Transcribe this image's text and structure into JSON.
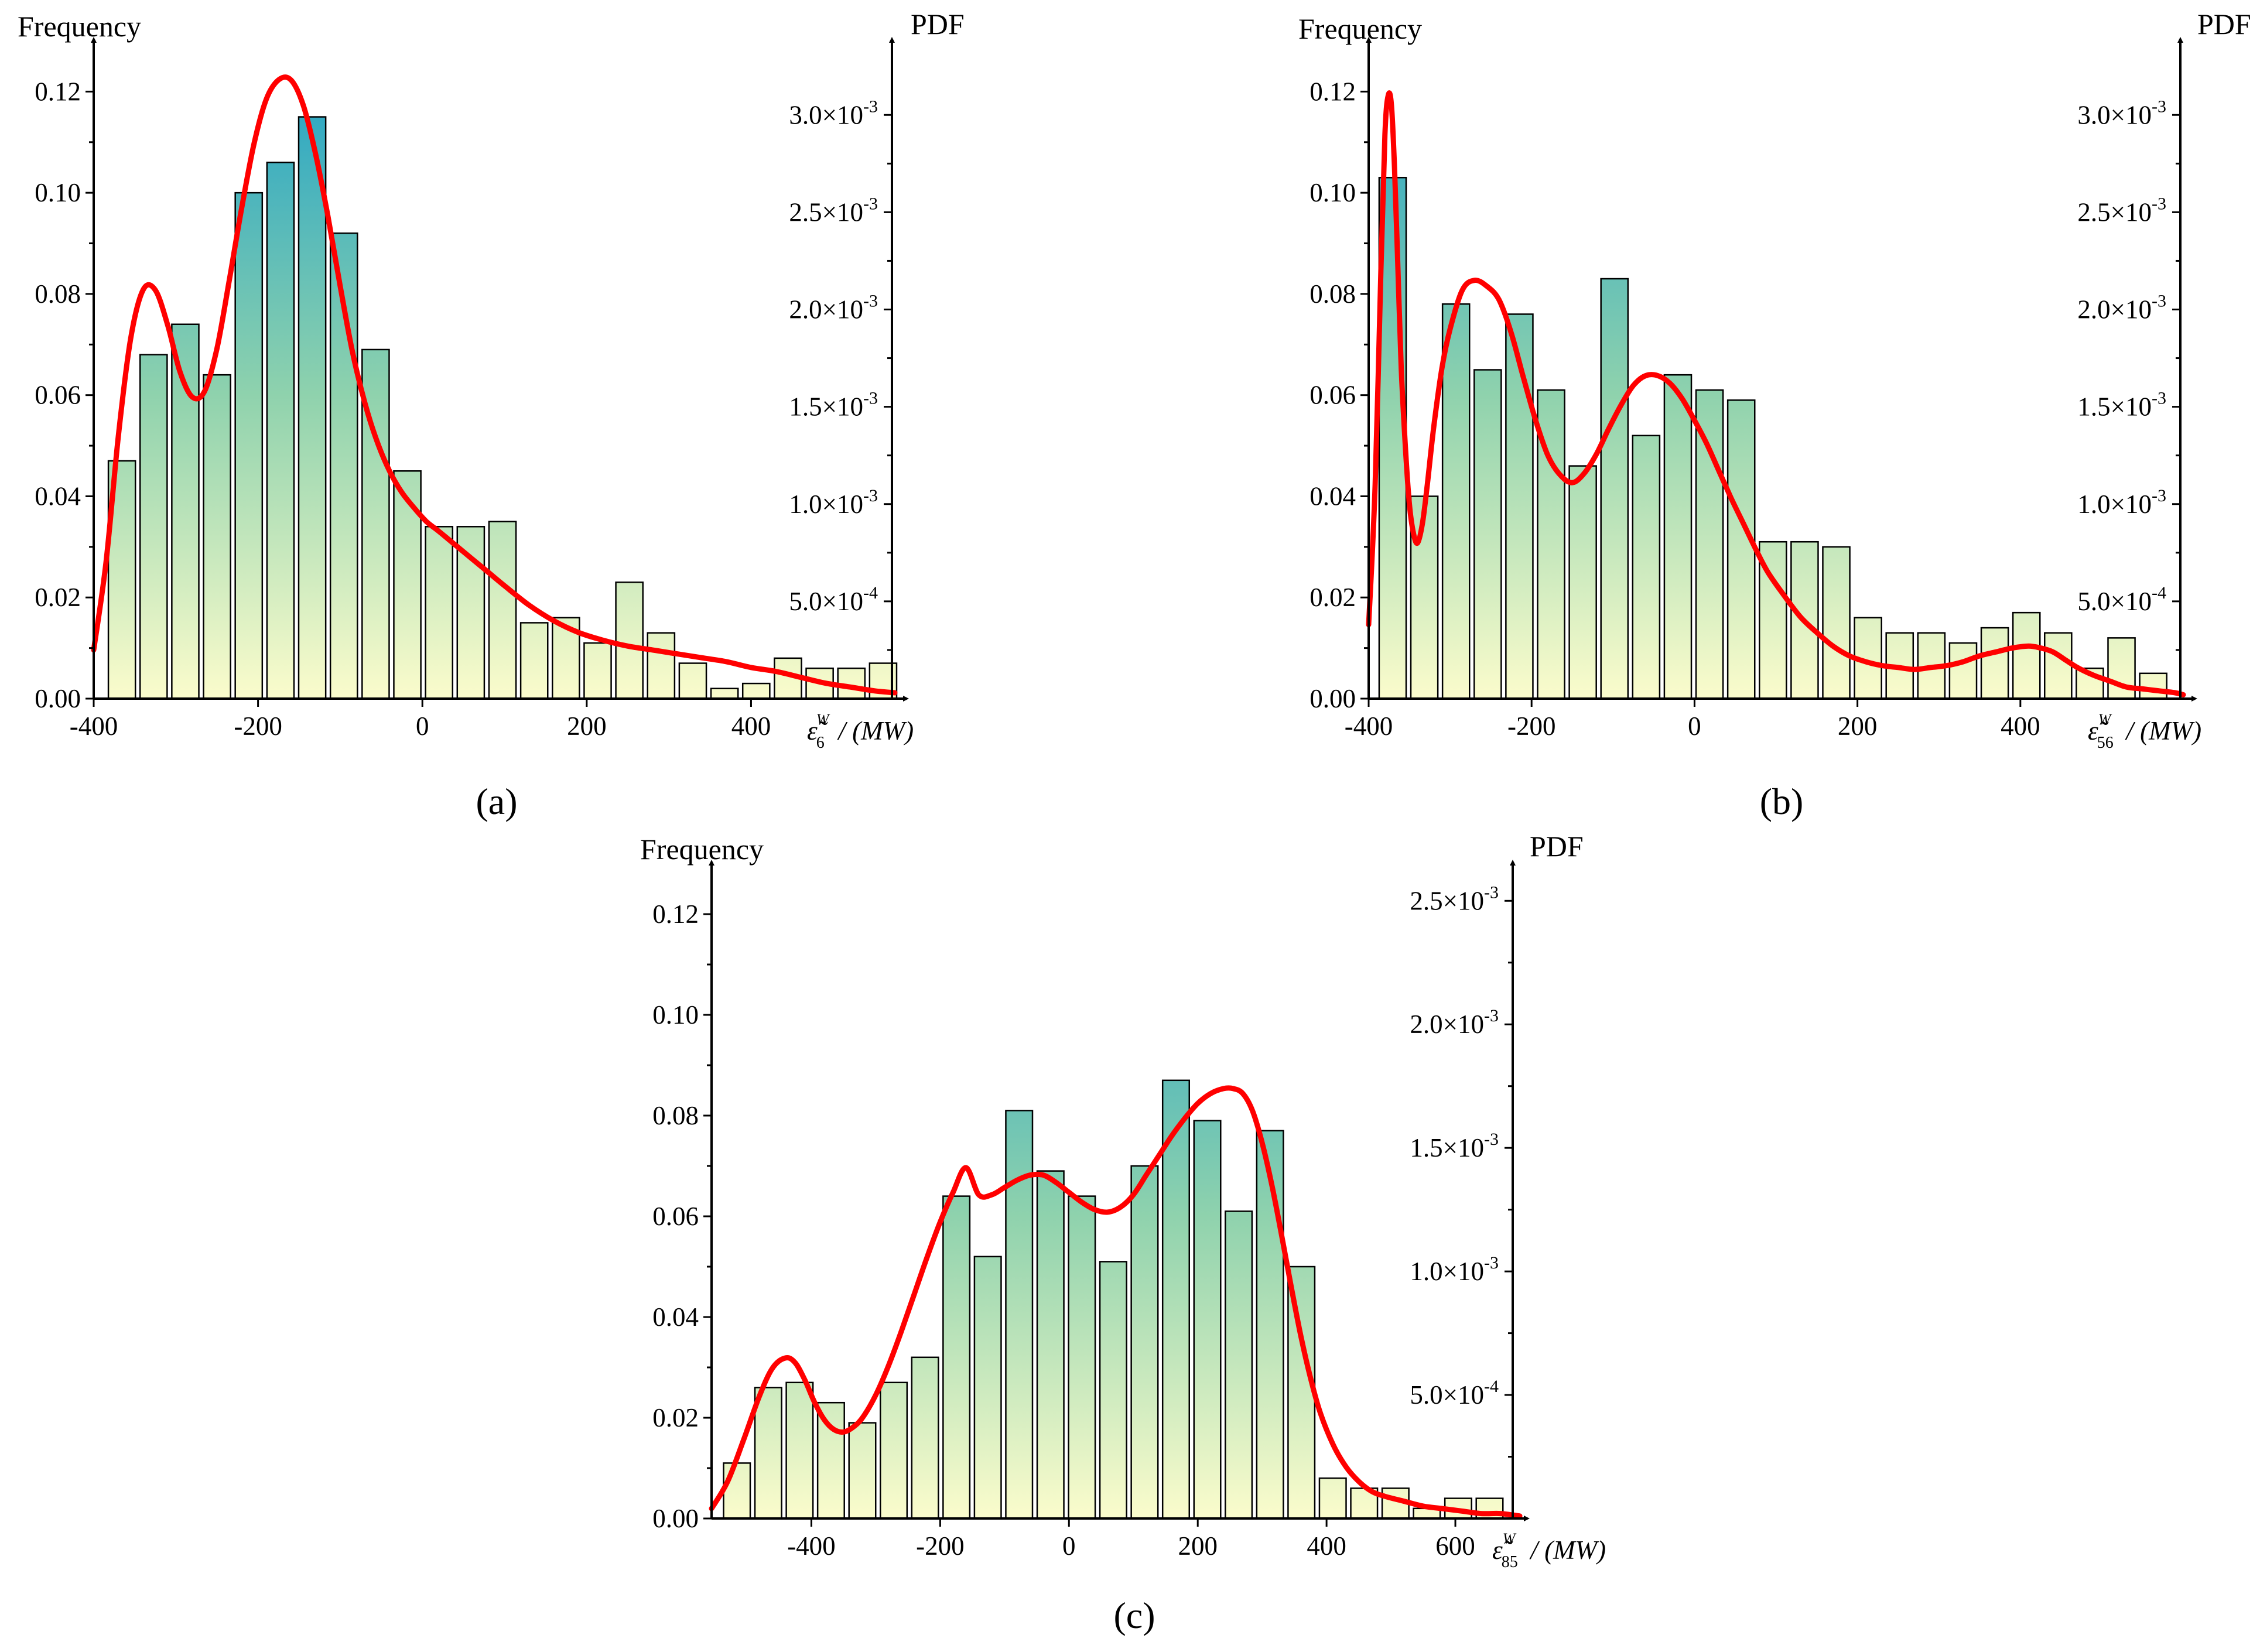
{
  "colors": {
    "bar_high": "#2ba6c4",
    "bar_mid": "#8fd2ad",
    "bar_low": "#fbfccc",
    "curve": "#ff0000",
    "axis": "#000000"
  },
  "chart_data": [
    {
      "id": "a",
      "type": "bar",
      "panel_label": "(a)",
      "ylabel": "Frequency",
      "y2label": "PDF",
      "xlabel_symbol": "ε̃",
      "xlabel_subscript": "6",
      "xlabel_superscript": "W",
      "xlabel_unit": "/ (MW)",
      "xlim": [
        -400,
        580
      ],
      "ylim": [
        0,
        0.13
      ],
      "y2lim": [
        0,
        0.00338
      ],
      "xticks": [
        -400,
        -200,
        0,
        200,
        400
      ],
      "xtick_labels": [
        "-400",
        "-200",
        "0",
        "200",
        "400"
      ],
      "yticks": [
        0,
        0.02,
        0.04,
        0.06,
        0.08,
        0.1,
        0.12
      ],
      "ytick_labels": [
        "0.00",
        "0.02",
        "0.04",
        "0.06",
        "0.08",
        "0.10",
        "0.12"
      ],
      "y2ticks": [
        0.0005,
        0.001,
        0.0015,
        0.002,
        0.0025,
        0.003
      ],
      "y2tick_labels": [
        {
          "mant": "5.0×10",
          "exp": "-4"
        },
        {
          "mant": "1.0×10",
          "exp": "-3"
        },
        {
          "mant": "1.5×10",
          "exp": "-3"
        },
        {
          "mant": "2.0×10",
          "exp": "-3"
        },
        {
          "mant": "2.5×10",
          "exp": "-3"
        },
        {
          "mant": "3.0×10",
          "exp": "-3"
        }
      ],
      "bin_start": -385,
      "bin_width": 38.6,
      "values": [
        0.047,
        0.068,
        0.074,
        0.064,
        0.1,
        0.106,
        0.115,
        0.092,
        0.069,
        0.045,
        0.034,
        0.034,
        0.035,
        0.015,
        0.016,
        0.011,
        0.023,
        0.013,
        0.007,
        0.002,
        0.003,
        0.008,
        0.006,
        0.006,
        0.007
      ],
      "pdf": {
        "x": [
          -400,
          -385,
          -370,
          -355,
          -340,
          -325,
          -310,
          -295,
          -280,
          -265,
          -250,
          -235,
          -220,
          -205,
          -190,
          -175,
          -160,
          -145,
          -130,
          -115,
          -100,
          -85,
          -70,
          -55,
          -40,
          -25,
          -10,
          5,
          20,
          40,
          60,
          80,
          100,
          130,
          160,
          190,
          220,
          250,
          280,
          310,
          340,
          370,
          400,
          430,
          460,
          490,
          520,
          550,
          575
        ],
        "y": [
          0.00025,
          0.0007,
          0.00135,
          0.00185,
          0.0021,
          0.0021,
          0.00192,
          0.00168,
          0.00155,
          0.00158,
          0.0018,
          0.00215,
          0.00252,
          0.00285,
          0.00308,
          0.00318,
          0.00318,
          0.00305,
          0.0028,
          0.00248,
          0.00212,
          0.00178,
          0.00152,
          0.00132,
          0.00117,
          0.00106,
          0.00098,
          0.00091,
          0.00086,
          0.00079,
          0.00072,
          0.00065,
          0.00058,
          0.00048,
          0.0004,
          0.00034,
          0.0003,
          0.00027,
          0.00025,
          0.00023,
          0.00021,
          0.00019,
          0.00016,
          0.00014,
          0.00011,
          8e-05,
          6e-05,
          4e-05,
          3e-05
        ]
      }
    },
    {
      "id": "b",
      "type": "bar",
      "panel_label": "(b)",
      "ylabel": "Frequency",
      "y2label": "PDF",
      "xlabel_symbol": "ε̃",
      "xlabel_subscript": "56",
      "xlabel_superscript": "W",
      "xlabel_unit": "/ (MW)",
      "xlim": [
        -400,
        605
      ],
      "ylim": [
        0,
        0.13
      ],
      "y2lim": [
        0,
        0.00338
      ],
      "xticks": [
        -400,
        -200,
        0,
        200,
        400
      ],
      "xtick_labels": [
        "-400",
        "-200",
        "0",
        "200",
        "400"
      ],
      "yticks": [
        0,
        0.02,
        0.04,
        0.06,
        0.08,
        0.1,
        0.12
      ],
      "ytick_labels": [
        "0.00",
        "0.02",
        "0.04",
        "0.06",
        "0.08",
        "0.10",
        "0.12"
      ],
      "y2ticks": [
        0.0005,
        0.001,
        0.0015,
        0.002,
        0.0025,
        0.003
      ],
      "y2tick_labels": [
        {
          "mant": "5.0×10",
          "exp": "-4"
        },
        {
          "mant": "1.0×10",
          "exp": "-3"
        },
        {
          "mant": "1.5×10",
          "exp": "-3"
        },
        {
          "mant": "2.0×10",
          "exp": "-3"
        },
        {
          "mant": "2.5×10",
          "exp": "-3"
        },
        {
          "mant": "3.0×10",
          "exp": "-3"
        }
      ],
      "bin_start": -390,
      "bin_width": 38.9,
      "values": [
        0.103,
        0.04,
        0.078,
        0.065,
        0.076,
        0.061,
        0.046,
        0.083,
        0.052,
        0.064,
        0.061,
        0.059,
        0.031,
        0.031,
        0.03,
        0.016,
        0.013,
        0.013,
        0.011,
        0.014,
        0.017,
        0.013,
        0.006,
        0.012,
        0.005
      ],
      "pdf": {
        "x": [
          -400,
          -392,
          -385,
          -380,
          -376,
          -372,
          -368,
          -364,
          -360,
          -355,
          -350,
          -345,
          -340,
          -334,
          -328,
          -320,
          -310,
          -300,
          -285,
          -270,
          -255,
          -240,
          -225,
          -210,
          -195,
          -180,
          -165,
          -150,
          -135,
          -120,
          -105,
          -90,
          -75,
          -60,
          -45,
          -30,
          -15,
          0,
          15,
          30,
          45,
          60,
          75,
          90,
          110,
          130,
          150,
          170,
          190,
          210,
          230,
          250,
          270,
          290,
          310,
          330,
          350,
          370,
          390,
          410,
          425,
          440,
          455,
          470,
          490,
          510,
          530,
          550,
          570,
          590,
          600
        ],
        "y": [
          0.00038,
          0.0011,
          0.0022,
          0.0029,
          0.0031,
          0.00305,
          0.0027,
          0.0022,
          0.0017,
          0.0013,
          0.001,
          0.00085,
          0.0008,
          0.0009,
          0.0011,
          0.0014,
          0.0017,
          0.0019,
          0.0021,
          0.00215,
          0.00212,
          0.00205,
          0.00188,
          0.00165,
          0.00143,
          0.00125,
          0.00115,
          0.00111,
          0.00116,
          0.00126,
          0.00139,
          0.00151,
          0.00161,
          0.00166,
          0.00166,
          0.00162,
          0.00154,
          0.00143,
          0.00131,
          0.00117,
          0.00103,
          0.0009,
          0.00077,
          0.00065,
          0.00053,
          0.00042,
          0.00034,
          0.00027,
          0.00022,
          0.00019,
          0.00017,
          0.00016,
          0.00015,
          0.00016,
          0.00017,
          0.00019,
          0.00022,
          0.00024,
          0.00026,
          0.00027,
          0.00026,
          0.00024,
          0.0002,
          0.00016,
          0.00012,
          9e-05,
          6e-05,
          5e-05,
          4e-05,
          3e-05,
          2e-05
        ]
      }
    },
    {
      "id": "c",
      "type": "bar",
      "panel_label": "(c)",
      "ylabel": "Frequency",
      "y2label": "PDF",
      "xlabel_symbol": "ε̃",
      "xlabel_subscript": "85",
      "xlabel_superscript": "W",
      "xlabel_unit": "/ (MW)",
      "xlim": [
        -555,
        700
      ],
      "ylim": [
        0,
        0.13
      ],
      "y2lim": [
        0,
        0.00265
      ],
      "xticks": [
        -400,
        -200,
        0,
        200,
        400,
        600
      ],
      "xtick_labels": [
        "-400",
        "-200",
        "0",
        "200",
        "400",
        "600"
      ],
      "yticks": [
        0,
        0.02,
        0.04,
        0.06,
        0.08,
        0.1,
        0.12
      ],
      "ytick_labels": [
        "0.00",
        "0.02",
        "0.04",
        "0.06",
        "0.08",
        "0.10",
        "0.12"
      ],
      "y2ticks": [
        0.0005,
        0.001,
        0.0015,
        0.002,
        0.0025
      ],
      "y2tick_labels": [
        {
          "mant": "5.0×10",
          "exp": "-4"
        },
        {
          "mant": "1.0×10",
          "exp": "-3"
        },
        {
          "mant": "1.5×10",
          "exp": "-3"
        },
        {
          "mant": "2.0×10",
          "exp": "-3"
        },
        {
          "mant": "2.5×10",
          "exp": "-3"
        }
      ],
      "bin_start": -540,
      "bin_width": 48.7,
      "values": [
        0.011,
        0.026,
        0.027,
        0.023,
        0.019,
        0.027,
        0.032,
        0.064,
        0.052,
        0.081,
        0.069,
        0.064,
        0.051,
        0.07,
        0.087,
        0.079,
        0.061,
        0.077,
        0.05,
        0.008,
        0.006,
        0.006,
        0.002,
        0.004,
        0.004
      ],
      "pdf": {
        "x": [
          -555,
          -530,
          -505,
          -480,
          -460,
          -440,
          -425,
          -410,
          -395,
          -380,
          -365,
          -350,
          -335,
          -320,
          -300,
          -280,
          -260,
          -240,
          -220,
          -200,
          -180,
          -160,
          -140,
          -120,
          -100,
          -80,
          -60,
          -40,
          -20,
          0,
          20,
          40,
          60,
          80,
          100,
          120,
          140,
          160,
          180,
          200,
          220,
          240,
          255,
          270,
          285,
          300,
          315,
          330,
          345,
          360,
          375,
          390,
          410,
          430,
          450,
          470,
          490,
          520,
          550,
          580,
          610,
          640,
          670,
          700
        ],
        "y": [
          4e-05,
          0.00015,
          0.00032,
          0.0005,
          0.00061,
          0.00065,
          0.00063,
          0.00056,
          0.00047,
          0.0004,
          0.00036,
          0.00035,
          0.00037,
          0.00041,
          0.0005,
          0.00062,
          0.00076,
          0.00091,
          0.00106,
          0.0012,
          0.00132,
          0.00142,
          0.00131,
          0.00131,
          0.00134,
          0.00137,
          0.00139,
          0.00139,
          0.00136,
          0.00132,
          0.00128,
          0.00125,
          0.00124,
          0.00126,
          0.00131,
          0.00139,
          0.00147,
          0.00155,
          0.00162,
          0.00168,
          0.00172,
          0.00174,
          0.00174,
          0.00172,
          0.00165,
          0.00152,
          0.00135,
          0.00115,
          0.00094,
          0.00074,
          0.00057,
          0.00043,
          0.0003,
          0.00021,
          0.00015,
          0.00011,
          9e-05,
          7e-05,
          5e-05,
          4e-05,
          3e-05,
          2e-05,
          2e-05,
          1e-05
        ]
      }
    }
  ]
}
